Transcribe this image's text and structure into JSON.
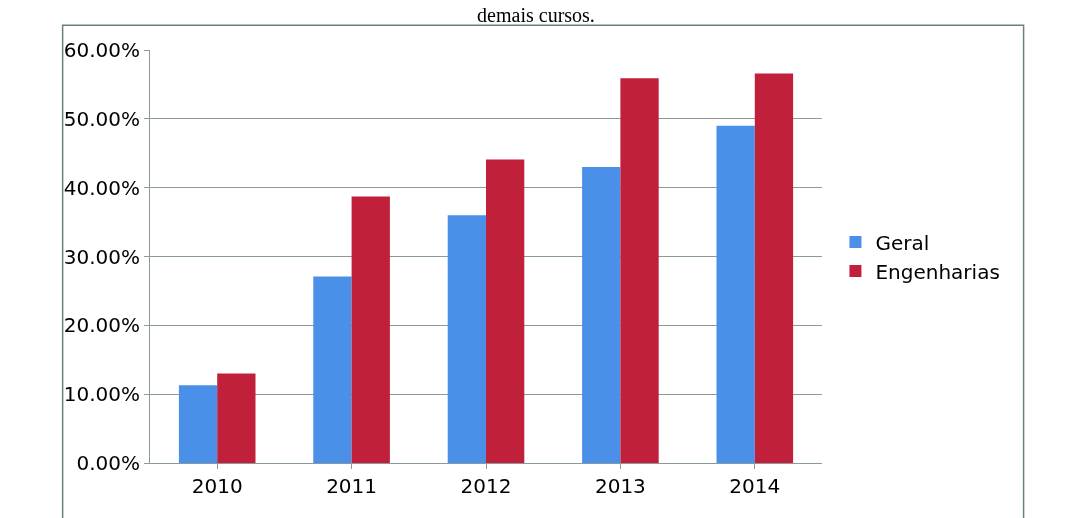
{
  "chart_data": {
    "type": "bar",
    "title": "demais cursos.",
    "categories": [
      "2010",
      "2011",
      "2012",
      "2013",
      "2014"
    ],
    "series": [
      {
        "name": "Geral",
        "color": "#4a8fe8",
        "values": [
          11.3,
          27.1,
          36.0,
          43.0,
          49.0
        ]
      },
      {
        "name": "Engenharias",
        "color": "#c0203a",
        "values": [
          13.0,
          38.7,
          44.1,
          55.9,
          56.6
        ]
      }
    ],
    "ylim": [
      0,
      60
    ],
    "yticks": [
      {
        "value": 0,
        "label": "0.00%"
      },
      {
        "value": 10,
        "label": "10.00%"
      },
      {
        "value": 20,
        "label": "20.00%"
      },
      {
        "value": 30,
        "label": "30.00%"
      },
      {
        "value": 40,
        "label": "40.00%"
      },
      {
        "value": 50,
        "label": "50.00%"
      },
      {
        "value": 60,
        "label": "60.00%"
      }
    ],
    "grid": "y",
    "legend": "right"
  }
}
